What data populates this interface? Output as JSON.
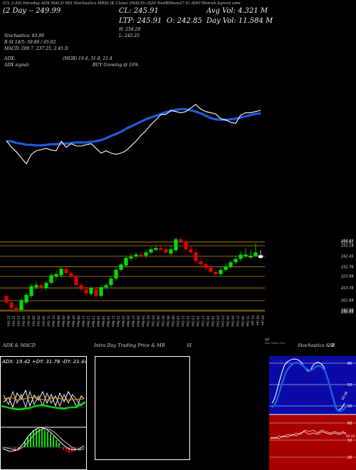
{
  "header": {
    "top_line": "(CL 2-50) Intraday ADX MACD RSI Stochastics MRSI (K Close) (MACD) (S20 NedBMean27 E) ADO Mstruk Agrent ome",
    "day_label": "(2 Day -- 249.99",
    "cl": "CL: 245.91",
    "avg_vol": "Avg Vol: 4.321 M",
    "ltp": "LTP: 245.91",
    "o": "O: 242.85",
    "day_vol": "Day Vol: 11.584  M",
    "h": "H: 254.29",
    "l": "L: 242.25",
    "stochastics": "Stochastics: 83.99",
    "rsi": "R   SI 14/5: 59.86 / 65.02",
    "macd": "MACD: 289.7,  237.25, 2.45 D",
    "adx": "ADX:",
    "adx_vals": "(MGR) 19.4,  31.8,  21.4",
    "adx_signal": "ADX  signal:",
    "adx_signal_val": "BUY Growing @ 16%"
  },
  "colors": {
    "up": "#00e000",
    "down": "#e00000",
    "ma_blue": "#1e5adc",
    "price_white": "#ffffff",
    "level_line": "#c8861a"
  },
  "chart_data": [
    {
      "type": "candlestick",
      "title": "",
      "dates": [
        "21 Oct",
        "22 Oct",
        "23 Oct",
        "24 Oct",
        "25 Oct",
        "28 Oct",
        "29 Oct",
        "30 Oct",
        "31 Oct",
        "01 Nov",
        "04 Nov",
        "05 Nov",
        "06 Nov",
        "07 Nov",
        "08 Nov",
        "11 Nov",
        "12 Nov",
        "13 Nov",
        "14 Nov",
        "18 Nov",
        "19 Nov",
        "21 Nov",
        "22 Nov",
        "25 Nov",
        "26 Nov",
        "27 Nov",
        "28 Nov",
        "29 Nov",
        "02 Dec",
        "03 Dec",
        "04 Dec",
        "05 Dec",
        "06 Dec",
        "09 Dec",
        "10 Dec",
        "11 Dec",
        "12 Dec",
        "13 Dec",
        "16 Dec",
        "17 Dec",
        "18 Dec",
        "19 Dec",
        "20 Dec",
        "23 Dec",
        "24 Dec",
        "26 Dec",
        "27 Dec",
        "30 Dec",
        "31 Dec",
        "01 Jan",
        "02 Jan",
        "03 Jan"
      ],
      "open": [
        206,
        200,
        195,
        193,
        200,
        206,
        214,
        216,
        213,
        218,
        224,
        225,
        231,
        227,
        224,
        216,
        212,
        208,
        212,
        206,
        214,
        216,
        222,
        230,
        234,
        241,
        243,
        244,
        243,
        246,
        249,
        250,
        249,
        245,
        248,
        258,
        256,
        249,
        246,
        238,
        235,
        232,
        228,
        226,
        230,
        233,
        237,
        240,
        244,
        243,
        242.85,
        242
      ],
      "close": [
        200,
        195,
        193,
        202,
        207,
        215,
        216,
        213,
        218,
        225,
        226,
        231,
        227,
        224,
        216,
        212,
        208,
        213,
        206,
        214,
        216,
        222,
        230,
        235,
        241,
        242,
        244,
        243,
        246,
        249,
        250,
        249,
        246,
        249,
        258,
        256,
        249,
        246,
        238,
        235,
        232,
        228,
        226,
        230,
        233,
        237,
        240,
        244,
        244,
        243,
        245.91,
        243
      ],
      "high": [
        208,
        203,
        199,
        204,
        209,
        217,
        219,
        218,
        220,
        227,
        229,
        233,
        233,
        228,
        226,
        218,
        214,
        215,
        214,
        216,
        218,
        224,
        232,
        237,
        243,
        245,
        246,
        247,
        248,
        251,
        252,
        252,
        251,
        252,
        260,
        260,
        258,
        252,
        249,
        241,
        237,
        235,
        231,
        233,
        236,
        239,
        243,
        247,
        250,
        248,
        254.29,
        248
      ],
      "low": [
        198,
        192,
        191,
        191,
        198,
        204,
        212,
        211,
        211,
        216,
        222,
        223,
        225,
        222,
        214,
        209,
        206,
        206,
        204,
        204,
        212,
        214,
        220,
        228,
        232,
        238,
        240,
        241,
        241,
        244,
        247,
        247,
        244,
        243,
        246,
        254,
        247,
        244,
        236,
        232,
        229,
        226,
        224,
        224,
        228,
        231,
        235,
        238,
        241,
        240,
        242.25,
        240
      ],
      "last_day_note": "Last day (03 Jan) shown as a hollow white doji",
      "levels": [
        255.61,
        252.19,
        242.45,
        232.76,
        223.99,
        213.39,
        201.69,
        192.99,
        191.99
      ],
      "price_labels": [
        "256.65",
        "255.61",
        "252.19",
        "242.45",
        "232.76",
        "223.99",
        "213.39",
        "201.69",
        "192.99",
        "191.99",
        "190.99"
      ],
      "ylim": [
        190,
        262
      ],
      "xlabel": "",
      "ylabel": ""
    },
    {
      "type": "line",
      "title": "",
      "series": [
        {
          "values": [
            200,
            200,
            197,
            196,
            194,
            194,
            193,
            193,
            194,
            195,
            195,
            196,
            196,
            197,
            198,
            198,
            198,
            199,
            200,
            202,
            205,
            209,
            212,
            216,
            221,
            225,
            229,
            233,
            237,
            240,
            243,
            246,
            249,
            251,
            253,
            254,
            254,
            252,
            250,
            247,
            243,
            239,
            237,
            236,
            236,
            237,
            238,
            240,
            242,
            244,
            246,
            247
          ]
        },
        {
          "values": [
            201,
            190,
            182,
            172,
            162,
            178,
            184,
            186,
            188,
            185,
            184,
            200,
            190,
            196,
            192,
            192,
            194,
            196,
            188,
            180,
            184,
            180,
            178,
            180,
            184,
            192,
            200,
            210,
            218,
            228,
            236,
            245,
            245,
            252,
            250,
            248,
            250,
            256,
            262,
            254,
            250,
            248,
            246,
            238,
            236,
            232,
            230,
            244,
            248,
            248,
            250,
            252
          ]
        }
      ],
      "ylim": [
        150,
        270
      ]
    }
  ],
  "axis": {
    "price_labels": [
      "256.65",
      "255.61",
      "252.19",
      "242.45",
      "232.76",
      "223.99",
      "213.39",
      "201.69",
      "192.99",
      "191.99",
      "190.99"
    ],
    "date_labels": [
      "21 Oct",
      "22 Oct",
      "23 Oct",
      "24 Oct",
      "25 Oct",
      "28 Oct",
      "29 Oct",
      "30 Oct",
      "31 Oct",
      "01 Nov",
      "04 Nov",
      "05 Nov",
      "06 Nov",
      "07 Nov",
      "08 Nov",
      "11 Nov",
      "12 Nov",
      "13 Nov",
      "14 Nov",
      "18 Nov",
      "19 Nov",
      "21 Nov",
      "22 Nov",
      "25 Nov",
      "26 Nov",
      "27 Nov",
      "28 Nov",
      "29 Nov",
      "02 Dec",
      "03 Dec",
      "04 Dec",
      "05 Dec",
      "06 Dec",
      "09 Dec",
      "10 Dec",
      "11 Dec",
      "12 Dec",
      "13 Dec",
      "16 Dec",
      "17 Dec",
      "18 Dec",
      "19 Dec",
      "20 Dec",
      "23 Dec",
      "24 Dec",
      "26 Dec",
      "27 Dec",
      "30 Dec",
      "31 Dec",
      "01 Jan",
      "02 Jan",
      "03 Jan"
    ],
    "corner_label": "$$",
    "corner_sub": "fine Sales Grp"
  },
  "panels": {
    "adx_title": "ADX  & MACD",
    "adx_values": "ADX: 19.42  +DY: 31.78  -DY: 21.44",
    "intraday_title": "Intra  Day Trading Price  & MR",
    "intraday_suffix": "SI",
    "stoch_title": "Stochastics & R",
    "stoch_suffix": "SI",
    "stoch_levels": [
      "80",
      "50",
      "20"
    ],
    "stoch_last": "83.99",
    "rsi_levels": [
      "80",
      "50",
      "20"
    ],
    "rsi_last": "65.02"
  }
}
